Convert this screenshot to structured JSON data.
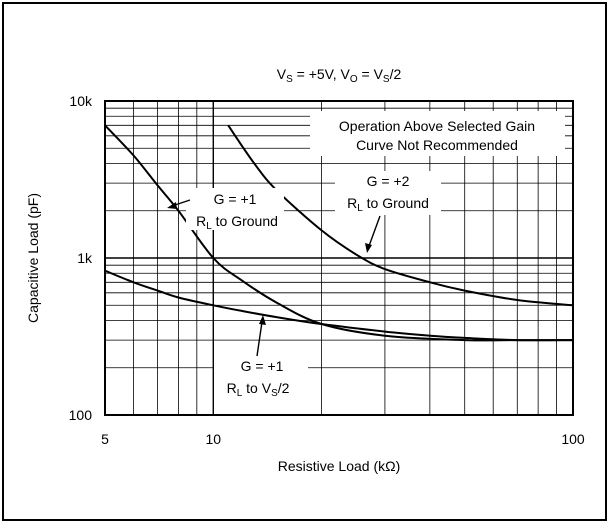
{
  "chart_data": {
    "type": "line",
    "title": "V_S = +5V, V_O = V_S/2",
    "xlabel": "Resistive Load (kΩ)",
    "ylabel": "Capacitive Load (pF)",
    "x_scale": "log",
    "y_scale": "log",
    "xlim": [
      5,
      100
    ],
    "ylim": [
      100,
      10000
    ],
    "x_ticks": [
      5,
      10,
      100
    ],
    "x_tick_labels": [
      "5",
      "10",
      "100"
    ],
    "y_ticks": [
      100,
      1000,
      10000
    ],
    "y_tick_labels": [
      "100",
      "1k",
      "10k"
    ],
    "grid": true,
    "series": [
      {
        "name": "G = +1, R_L to Ground",
        "x": [
          5,
          6,
          7,
          8,
          10,
          12,
          15,
          20,
          30,
          50,
          70,
          100
        ],
        "y": [
          7000,
          4500,
          2900,
          2000,
          1000,
          720,
          520,
          380,
          320,
          300,
          300,
          300
        ]
      },
      {
        "name": "G = +2, R_L to Ground",
        "x": [
          11,
          13,
          15,
          20,
          25,
          30,
          40,
          50,
          70,
          100
        ],
        "y": [
          7000,
          4000,
          2700,
          1500,
          1050,
          850,
          700,
          620,
          540,
          500
        ]
      },
      {
        "name": "G = +1, R_L to V_S/2",
        "x": [
          5,
          6,
          7,
          8,
          10,
          12,
          15,
          20,
          30,
          40,
          50,
          70,
          100
        ],
        "y": [
          830,
          700,
          620,
          560,
          500,
          460,
          420,
          380,
          340,
          320,
          310,
          300,
          300
        ]
      }
    ],
    "annotations": {
      "region": [
        "Operation Above Selected Gain",
        "Curve Not Recommended"
      ],
      "g1_ground": [
        "G = +1",
        "R_L to Ground"
      ],
      "g2_ground": [
        "G = +2",
        "R_L to Ground"
      ],
      "g1_vs2": [
        "G = +1",
        "R_L to V_S/2"
      ]
    }
  }
}
